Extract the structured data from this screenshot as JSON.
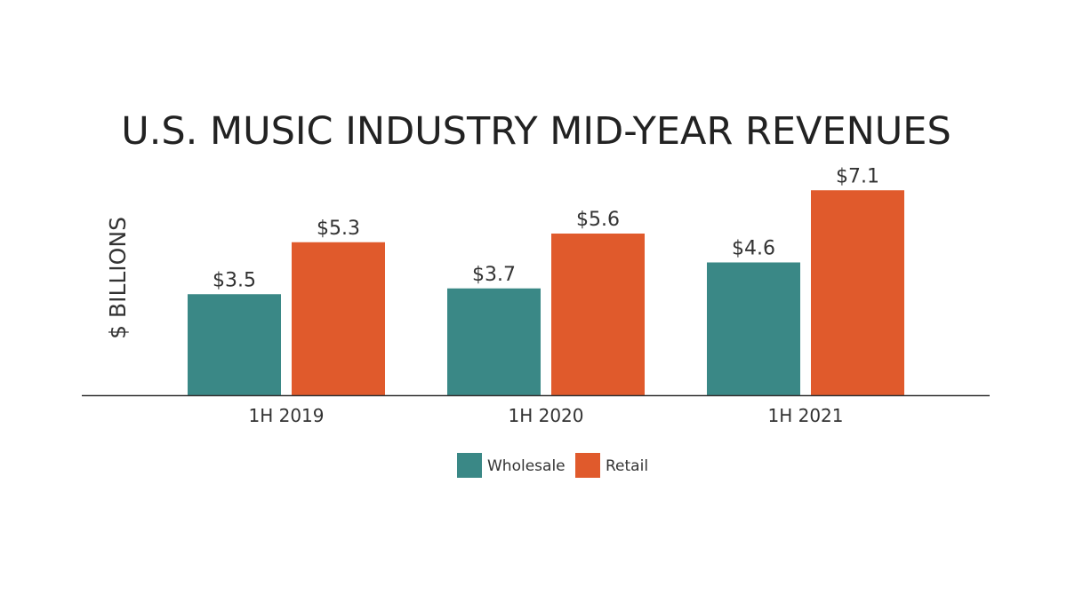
{
  "chart_data": {
    "type": "bar",
    "title": "U.S. MUSIC INDUSTRY MID-YEAR REVENUES",
    "ylabel": "$ BILLIONS",
    "xlabel": "",
    "categories": [
      "1H 2019",
      "1H 2020",
      "1H 2021"
    ],
    "series": [
      {
        "name": "Wholesale",
        "color": "#3a8886",
        "values": [
          3.5,
          3.7,
          4.6
        ],
        "labels": [
          "$3.5",
          "$3.7",
          "$4.6"
        ]
      },
      {
        "name": "Retail",
        "color": "#e05a2c",
        "values": [
          5.3,
          5.6,
          7.1
        ],
        "labels": [
          "$5.3",
          "$5.6",
          "$7.1"
        ]
      }
    ],
    "ylim": [
      0,
      7.1
    ],
    "grid": false,
    "legend_position": "bottom"
  }
}
